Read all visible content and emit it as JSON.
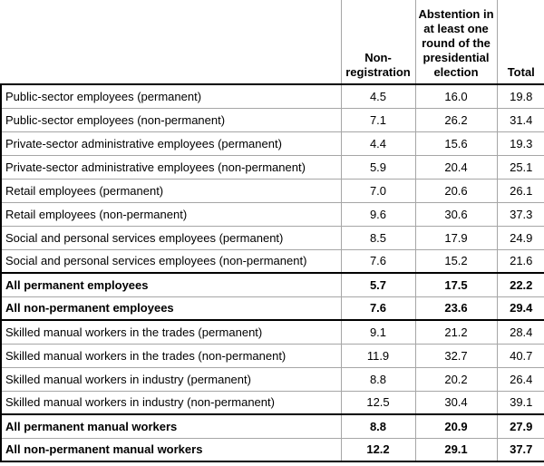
{
  "table": {
    "header": {
      "label": "",
      "non_registration": "Non-\nregistration",
      "abstention": "Abstention in\nat least one\nround of the\npresidential\nelection",
      "total": "Total"
    },
    "rows": [
      {
        "label": "Public-sector employees (permanent)",
        "non_registration": "4.5",
        "abstention": "16.0",
        "total": "19.8",
        "bold": false,
        "rule_below": "thin"
      },
      {
        "label": "Public-sector employees (non-permanent)",
        "non_registration": "7.1",
        "abstention": "26.2",
        "total": "31.4",
        "bold": false,
        "rule_below": "thin"
      },
      {
        "label": "Private-sector administrative employees (permanent)",
        "non_registration": "4.4",
        "abstention": "15.6",
        "total": "19.3",
        "bold": false,
        "rule_below": "thin"
      },
      {
        "label": "Private-sector administrative employees (non-permanent)",
        "non_registration": "5.9",
        "abstention": "20.4",
        "total": "25.1",
        "bold": false,
        "rule_below": "thin"
      },
      {
        "label": "Retail employees (permanent)",
        "non_registration": "7.0",
        "abstention": "20.6",
        "total": "26.1",
        "bold": false,
        "rule_below": "thin"
      },
      {
        "label": "Retail employees (non-permanent)",
        "non_registration": "9.6",
        "abstention": "30.6",
        "total": "37.3",
        "bold": false,
        "rule_below": "thin"
      },
      {
        "label": "Social and personal services employees (permanent)",
        "non_registration": "8.5",
        "abstention": "17.9",
        "total": "24.9",
        "bold": false,
        "rule_below": "thin"
      },
      {
        "label": "Social and personal services employees (non-permanent)",
        "non_registration": "7.6",
        "abstention": "15.2",
        "total": "21.6",
        "bold": false,
        "rule_below": "black"
      },
      {
        "label": "All permanent employees",
        "non_registration": "5.7",
        "abstention": "17.5",
        "total": "22.2",
        "bold": true,
        "rule_below": "thin"
      },
      {
        "label": "All non-permanent employees",
        "non_registration": "7.6",
        "abstention": "23.6",
        "total": "29.4",
        "bold": true,
        "rule_below": "black"
      },
      {
        "label": "Skilled manual workers in the trades (permanent)",
        "non_registration": "9.1",
        "abstention": "21.2",
        "total": "28.4",
        "bold": false,
        "rule_below": "thin"
      },
      {
        "label": "Skilled manual workers in the trades (non-permanent)",
        "non_registration": "11.9",
        "abstention": "32.7",
        "total": "40.7",
        "bold": false,
        "rule_below": "thin"
      },
      {
        "label": "Skilled manual workers in industry (permanent)",
        "non_registration": "8.8",
        "abstention": "20.2",
        "total": "26.4",
        "bold": false,
        "rule_below": "thin"
      },
      {
        "label": "Skilled manual workers in industry (non-permanent)",
        "non_registration": "12.5",
        "abstention": "30.4",
        "total": "39.1",
        "bold": false,
        "rule_below": "black"
      },
      {
        "label": "All permanent manual workers",
        "non_registration": "8.8",
        "abstention": "20.9",
        "total": "27.9",
        "bold": true,
        "rule_below": "thin"
      },
      {
        "label": "All non-permanent manual workers",
        "non_registration": "12.2",
        "abstention": "29.1",
        "total": "37.7",
        "bold": true,
        "rule_below": "black"
      }
    ]
  },
  "colors": {
    "thin_border": "#a6a6a6",
    "thick_border": "#000000",
    "text": "#000000",
    "background": "#ffffff"
  }
}
